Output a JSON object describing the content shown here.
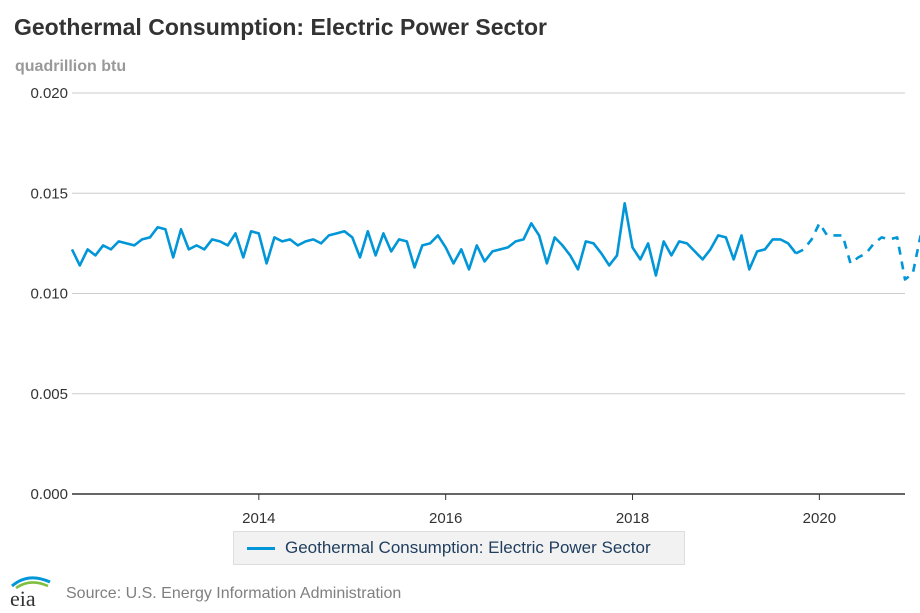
{
  "header": {
    "title": "Geothermal Consumption: Electric Power Sector",
    "unit": "quadrillion btu"
  },
  "legend": {
    "label": "Geothermal Consumption: Electric Power Sector"
  },
  "footer": {
    "logo_text": "eia",
    "source": "Source: U.S. Energy Information Administration"
  },
  "colors": {
    "series": "#0096d7",
    "grid": "#cccccc",
    "axis": "#333333"
  },
  "chart_data": {
    "type": "line",
    "title": "Geothermal Consumption: Electric Power Sector",
    "ylabel": "quadrillion btu",
    "xlabel": "",
    "ylim": [
      0,
      0.02
    ],
    "xlim": [
      "2012-01",
      "2020-12"
    ],
    "y_ticks": [
      "0.000",
      "0.005",
      "0.010",
      "0.015",
      "0.020"
    ],
    "y_tick_values": [
      0,
      0.005,
      0.01,
      0.015,
      0.02
    ],
    "x_ticks": [
      "2014",
      "2016",
      "2018",
      "2020"
    ],
    "grid": true,
    "legend_position": "bottom",
    "series": [
      {
        "name": "Geothermal Consumption: Electric Power Sector",
        "style_note": "solid through 2019-10, dashed afterwards",
        "dashed_from": "2019-10",
        "x_start": "2012-01",
        "frequency": "monthly",
        "values": [
          0.0122,
          0.0114,
          0.0122,
          0.0119,
          0.0124,
          0.0122,
          0.0126,
          0.0125,
          0.0124,
          0.0127,
          0.0128,
          0.0133,
          0.0132,
          0.0118,
          0.0132,
          0.0122,
          0.0124,
          0.0122,
          0.0127,
          0.0126,
          0.0124,
          0.013,
          0.0118,
          0.0131,
          0.013,
          0.0115,
          0.0128,
          0.0126,
          0.0127,
          0.0124,
          0.0126,
          0.0127,
          0.0125,
          0.0129,
          0.013,
          0.0131,
          0.0128,
          0.0118,
          0.0131,
          0.0119,
          0.013,
          0.0121,
          0.0127,
          0.0126,
          0.0113,
          0.0124,
          0.0125,
          0.0129,
          0.0123,
          0.0115,
          0.0122,
          0.0112,
          0.0124,
          0.0116,
          0.0121,
          0.0122,
          0.0123,
          0.0126,
          0.0127,
          0.0135,
          0.0129,
          0.0115,
          0.0128,
          0.0124,
          0.0119,
          0.0112,
          0.0126,
          0.0125,
          0.012,
          0.0114,
          0.0119,
          0.0145,
          0.0123,
          0.0117,
          0.0125,
          0.0109,
          0.0126,
          0.0119,
          0.0126,
          0.0125,
          0.0121,
          0.0117,
          0.0122,
          0.0129,
          0.0128,
          0.0117,
          0.0129,
          0.0112,
          0.0121,
          0.0122,
          0.0127,
          0.0127,
          0.0125,
          0.012,
          0.0122,
          0.0127,
          0.0135,
          0.0129,
          0.0129,
          0.0129,
          0.0115,
          0.0118,
          0.012,
          0.0125,
          0.0128,
          0.0127,
          0.0128,
          0.0107,
          0.011,
          0.0129
        ]
      }
    ]
  }
}
